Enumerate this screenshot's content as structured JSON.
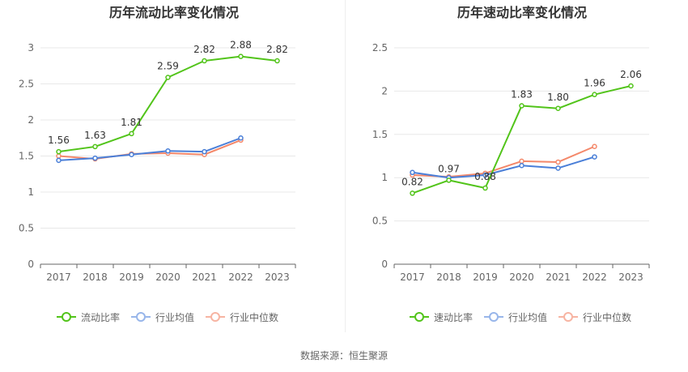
{
  "colors": {
    "green": "#52c41a",
    "blue": "#4a7fd8",
    "orange": "#f4886a",
    "green_light": "#7ed957",
    "blue_light": "#98b6ea",
    "orange_light": "#f7b4a2"
  },
  "chart_data": [
    {
      "type": "line",
      "title": "历年流动比率变化情况",
      "categories": [
        "2017",
        "2018",
        "2019",
        "2020",
        "2021",
        "2022",
        "2023"
      ],
      "ylim": [
        0,
        3
      ],
      "yticks": [
        0,
        0.5,
        1,
        1.5,
        2,
        2.5,
        3
      ],
      "ytick_labels": [
        "0",
        "0.5",
        "1",
        "1.5",
        "2",
        "2.5",
        "3"
      ],
      "series": [
        {
          "name": "流动比率",
          "values": [
            1.56,
            1.63,
            1.81,
            2.59,
            2.82,
            2.88,
            2.82
          ],
          "labels": [
            "1.56",
            "1.63",
            "1.81",
            "2.59",
            "2.82",
            "2.88",
            "2.82"
          ]
        },
        {
          "name": "行业均值",
          "values": [
            1.44,
            1.47,
            1.52,
            1.57,
            1.56,
            1.75,
            null
          ]
        },
        {
          "name": "行业中位数",
          "values": [
            1.5,
            1.46,
            1.53,
            1.54,
            1.52,
            1.72,
            null
          ]
        }
      ]
    },
    {
      "type": "line",
      "title": "历年速动比率变化情况",
      "categories": [
        "2017",
        "2018",
        "2019",
        "2020",
        "2021",
        "2022",
        "2023"
      ],
      "ylim": [
        0,
        2.5
      ],
      "yticks": [
        0,
        0.5,
        1,
        1.5,
        2,
        2.5
      ],
      "ytick_labels": [
        "0",
        "0.5",
        "1",
        "1.5",
        "2",
        "2.5"
      ],
      "series": [
        {
          "name": "速动比率",
          "values": [
            0.82,
            0.97,
            0.88,
            1.83,
            1.8,
            1.96,
            2.06
          ],
          "labels": [
            "0.82",
            "0.97",
            "0.88",
            "1.83",
            "1.80",
            "1.96",
            "2.06"
          ]
        },
        {
          "name": "行业均值",
          "values": [
            1.06,
            1.0,
            1.03,
            1.14,
            1.11,
            1.24,
            null
          ]
        },
        {
          "name": "行业中位数",
          "values": [
            1.03,
            1.01,
            1.05,
            1.19,
            1.18,
            1.36,
            null
          ]
        }
      ]
    }
  ],
  "source_text": "数据来源：恒生聚源"
}
